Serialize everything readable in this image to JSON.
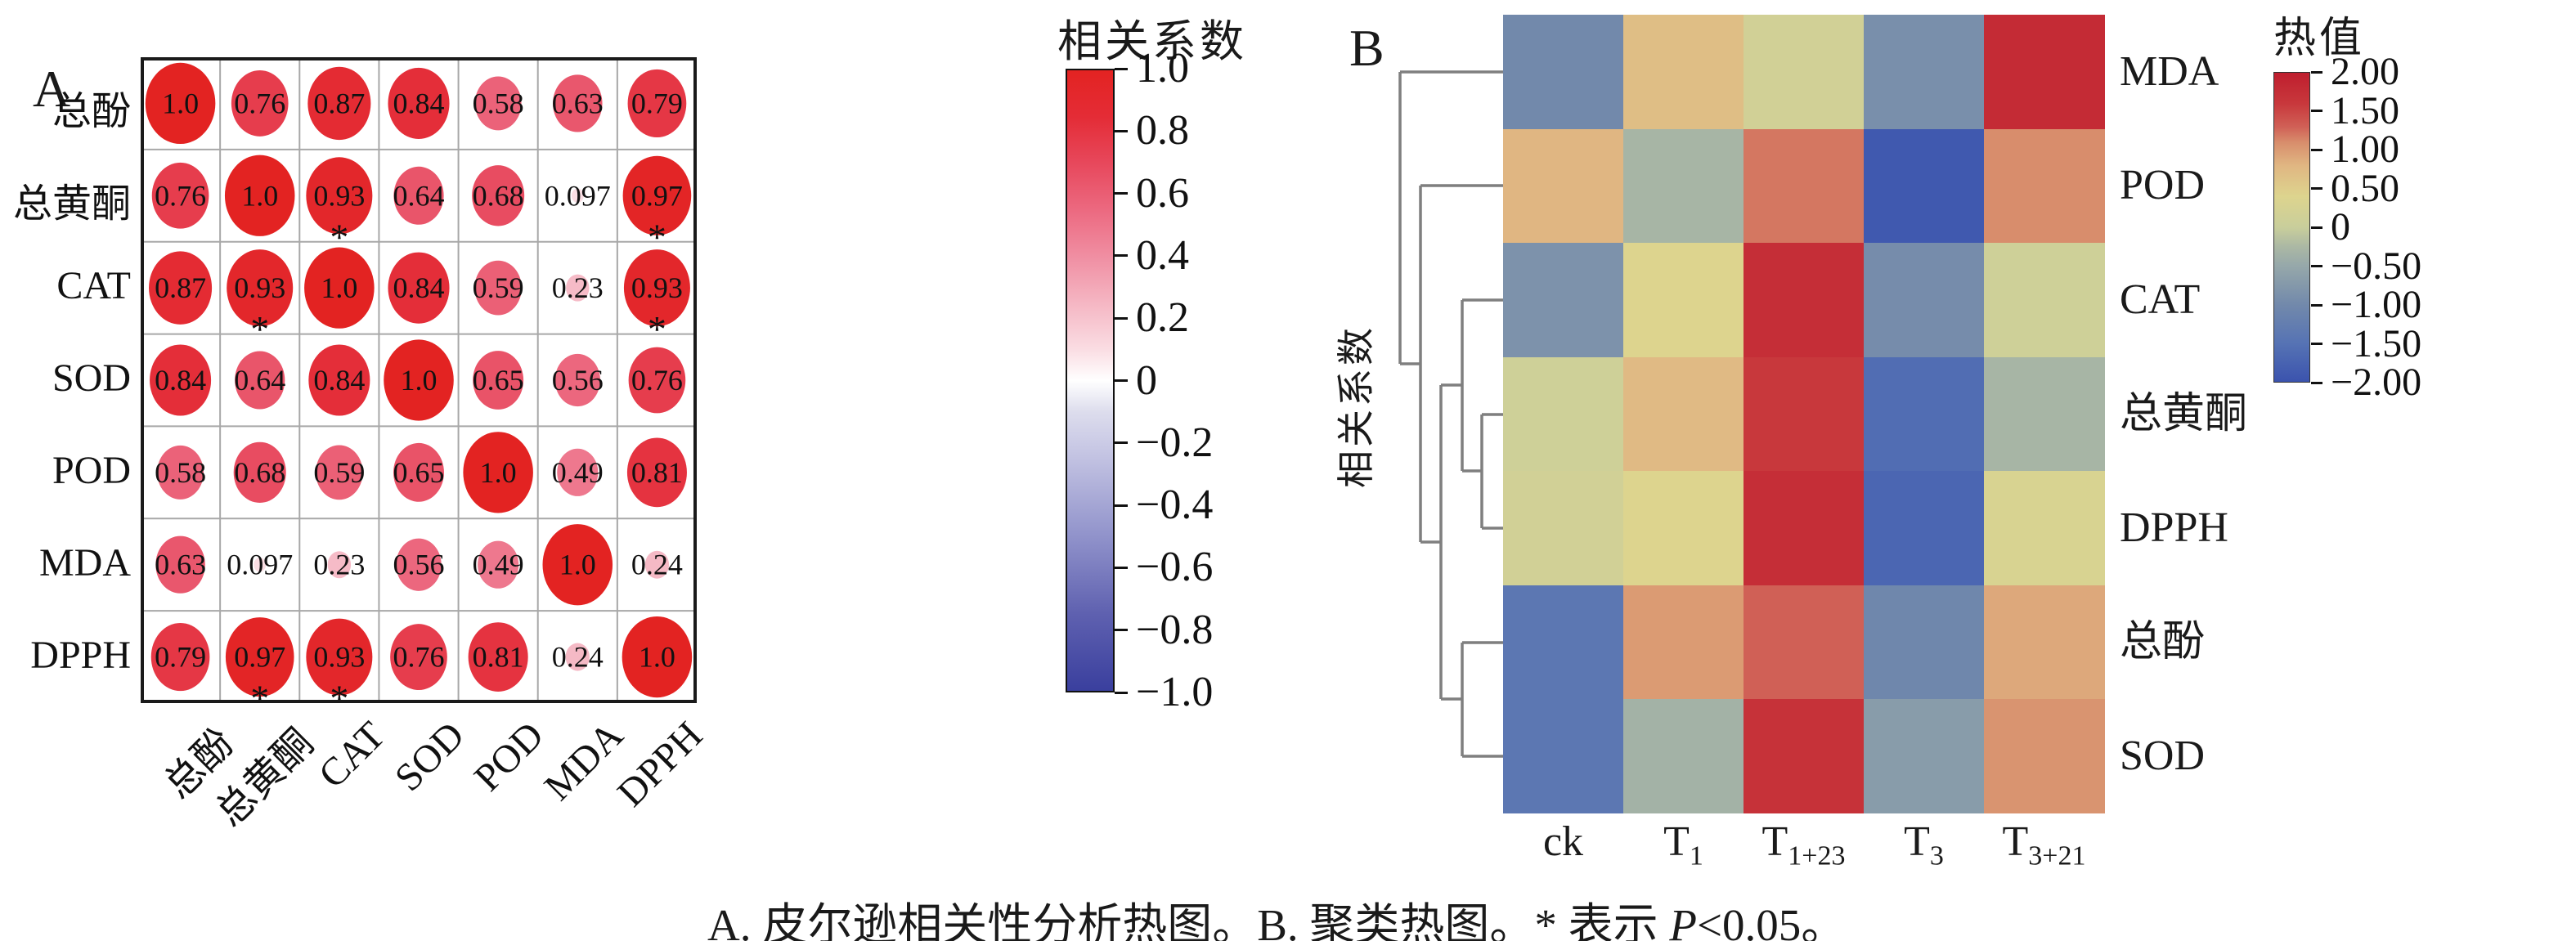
{
  "caption": {
    "before_p": "A. 皮尔逊相关性分析热图。B. 聚类热图。* 表示 ",
    "p": "P",
    "after_p": "<0.05。"
  },
  "chart_data": [
    {
      "id": "pearson-correlation-heatmap",
      "type": "heatmap",
      "title": "A",
      "description": "皮尔逊相关性分析热图 (circle correlation matrix, red = positive)",
      "categories": [
        "总酚",
        "总黄酮",
        "CAT",
        "SOD",
        "POD",
        "MDA",
        "DPPH"
      ],
      "matrix_display": [
        [
          "1.0",
          "0.76",
          "0.87",
          "0.84",
          "0.58",
          "0.63",
          "0.79"
        ],
        [
          "0.76",
          "1.0",
          "0.93",
          "0.64",
          "0.68",
          "0.097",
          "0.97"
        ],
        [
          "0.87",
          "0.93",
          "1.0",
          "0.84",
          "0.59",
          "0.23",
          "0.93"
        ],
        [
          "0.84",
          "0.64",
          "0.84",
          "1.0",
          "0.65",
          "0.56",
          "0.76"
        ],
        [
          "0.58",
          "0.68",
          "0.59",
          "0.65",
          "1.0",
          "0.49",
          "0.81"
        ],
        [
          "0.63",
          "0.097",
          "0.23",
          "0.56",
          "0.49",
          "1.0",
          "0.24"
        ],
        [
          "0.79",
          "0.97",
          "0.93",
          "0.76",
          "0.81",
          "0.24",
          "1.0"
        ]
      ],
      "matrix_values": [
        [
          1.0,
          0.76,
          0.87,
          0.84,
          0.58,
          0.63,
          0.79
        ],
        [
          0.76,
          1.0,
          0.93,
          0.64,
          0.68,
          0.097,
          0.97
        ],
        [
          0.87,
          0.93,
          1.0,
          0.84,
          0.59,
          0.23,
          0.93
        ],
        [
          0.84,
          0.64,
          0.84,
          1.0,
          0.65,
          0.56,
          0.76
        ],
        [
          0.58,
          0.68,
          0.59,
          0.65,
          1.0,
          0.49,
          0.81
        ],
        [
          0.63,
          0.097,
          0.23,
          0.56,
          0.49,
          1.0,
          0.24
        ],
        [
          0.79,
          0.97,
          0.93,
          0.76,
          0.81,
          0.24,
          1.0
        ]
      ],
      "significant_cells": [
        [
          1,
          2
        ],
        [
          1,
          6
        ],
        [
          2,
          1
        ],
        [
          2,
          6
        ],
        [
          6,
          1
        ],
        [
          6,
          2
        ]
      ],
      "significance_marker": "*",
      "legend": {
        "title": "相关系数",
        "position": "right",
        "min": -1,
        "max": 1,
        "ticks": [
          "1.0",
          "0.8",
          "0.6",
          "0.4",
          "0.2",
          "0",
          "−0.2",
          "−0.4",
          "−0.6",
          "−0.8",
          "−1.0"
        ]
      }
    },
    {
      "id": "cluster-heatmap",
      "type": "heatmap",
      "title": "B",
      "description": "聚类热图 (clustered heatmap with row dendrogram, values are scaled z-scores estimated from cell colors)",
      "rows": [
        "MDA",
        "POD",
        "CAT",
        "总黄酮",
        "DPPH",
        "总酚",
        "SOD"
      ],
      "columns": [
        {
          "base": "ck",
          "sub": ""
        },
        {
          "base": "T",
          "sub": "1"
        },
        {
          "base": "T",
          "sub": "1+23"
        },
        {
          "base": "T",
          "sub": "3"
        },
        {
          "base": "T",
          "sub": "3+21"
        }
      ],
      "values_estimated": [
        [
          -1.0,
          0.7,
          0.15,
          -0.9,
          1.8
        ],
        [
          0.8,
          -0.3,
          1.2,
          -1.9,
          1.1
        ],
        [
          -0.85,
          0.4,
          1.75,
          -0.95,
          0.1
        ],
        [
          0.1,
          0.75,
          1.6,
          -1.6,
          -0.3
        ],
        [
          0.15,
          0.4,
          1.75,
          -1.7,
          0.3
        ],
        [
          -1.4,
          1.0,
          1.3,
          -1.05,
          0.9
        ],
        [
          -1.4,
          -0.35,
          1.7,
          -0.7,
          1.05
        ]
      ],
      "axis_label": "相关系数",
      "legend": {
        "title": "热值",
        "position": "right",
        "min": -2,
        "max": 2,
        "ticks": [
          "2.00",
          "1.50",
          "1.00",
          "0.50",
          "0",
          "−0.50",
          "−1.00",
          "−1.50",
          "−2.00"
        ]
      },
      "dendrogram_segments": [
        [
          1712,
          88,
          1838,
          88
        ],
        [
          1712,
          88,
          1712,
          445
        ],
        [
          1712,
          445,
          1737,
          445
        ],
        [
          1737,
          227,
          1838,
          227
        ],
        [
          1737,
          227,
          1737,
          663
        ],
        [
          1737,
          663,
          1762,
          663
        ],
        [
          1762,
          471,
          1762,
          855
        ],
        [
          1762,
          471,
          1788,
          471
        ],
        [
          1762,
          855,
          1788,
          855
        ],
        [
          1788,
          367,
          1838,
          367
        ],
        [
          1788,
          367,
          1788,
          576
        ],
        [
          1788,
          576,
          1812,
          576
        ],
        [
          1812,
          507,
          1812,
          646
        ],
        [
          1812,
          507,
          1838,
          507
        ],
        [
          1812,
          646,
          1838,
          646
        ],
        [
          1788,
          786,
          1788,
          925
        ],
        [
          1788,
          786,
          1838,
          786
        ],
        [
          1788,
          925,
          1838,
          925
        ]
      ]
    }
  ],
  "colors": {
    "corr_scale_stops": [
      [
        -1,
        "#3a3f9e"
      ],
      [
        -0.75,
        "#5f61b0"
      ],
      [
        -0.5,
        "#9193cb"
      ],
      [
        -0.25,
        "#c2c2e2"
      ],
      [
        -0.1,
        "#dddded"
      ],
      [
        0,
        "#ffffff"
      ],
      [
        0.1,
        "#fadde3"
      ],
      [
        0.25,
        "#f5b6c3"
      ],
      [
        0.4,
        "#f08ea2"
      ],
      [
        0.55,
        "#ec6980"
      ],
      [
        0.7,
        "#e7485c"
      ],
      [
        0.85,
        "#e42c36"
      ],
      [
        1,
        "#e32322"
      ]
    ],
    "heat_scale_stops": [
      [
        -2,
        "#3b53ae"
      ],
      [
        -1.5,
        "#5673b4"
      ],
      [
        -1,
        "#7289ab"
      ],
      [
        -0.5,
        "#96a8aa"
      ],
      [
        -0.25,
        "#abb8a4"
      ],
      [
        0,
        "#c9ce9b"
      ],
      [
        0.4,
        "#ddd48e"
      ],
      [
        0.8,
        "#e0b682"
      ],
      [
        1.1,
        "#d88d6c"
      ],
      [
        1.3,
        "#d06056"
      ],
      [
        1.6,
        "#c8383c"
      ],
      [
        2,
        "#bf1e2e"
      ]
    ],
    "dendrogram_line": "#7f7f7f",
    "grid_line": "#a8a8a8",
    "matrix_border": "#1a1a1a",
    "text": "#111111"
  }
}
